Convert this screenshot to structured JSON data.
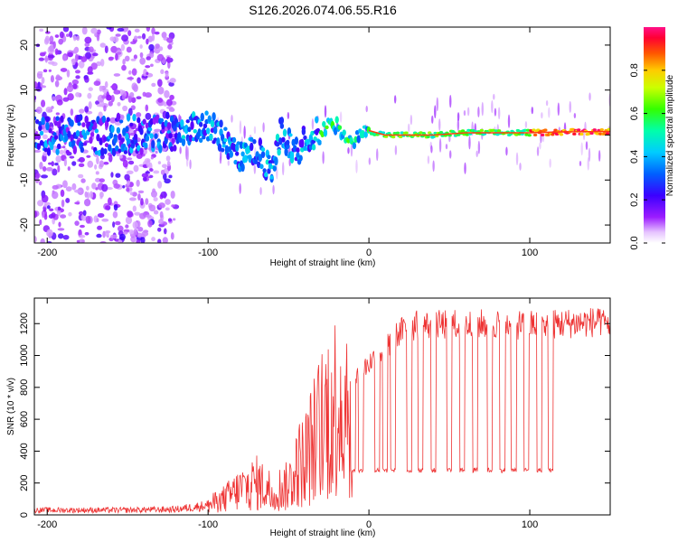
{
  "chart_data": [
    {
      "type": "heatmap",
      "title": "S126.2026.074.06.55.R16",
      "xlabel": "Height of straight line (km)",
      "ylabel": "Frequency (Hz)",
      "xlim": [
        -208,
        150
      ],
      "ylim": [
        -24,
        24
      ],
      "xticks": [
        -200,
        -100,
        0,
        100
      ],
      "xtick_labels": [
        "-200",
        "-100",
        "0",
        "100"
      ],
      "yticks": [
        20,
        10,
        0,
        -10,
        -20
      ],
      "ytick_labels": [
        "20",
        "10",
        "0",
        "-10",
        "-20"
      ],
      "colorbar": {
        "label": "Normalized spectral amplitude",
        "range": [
          0,
          1
        ],
        "ticks": [
          0.0,
          0.2,
          0.4,
          0.6,
          0.8
        ],
        "tick_labels": [
          "0.0",
          "0.2",
          "0.4",
          "0.6",
          "0.8"
        ]
      },
      "ridge": {
        "x": [
          -208,
          -180,
          -150,
          -130,
          -120,
          -110,
          -100,
          -95,
          -90,
          -85,
          -80,
          -75,
          -70,
          -65,
          -60,
          -55,
          -50,
          -45,
          -40,
          -35,
          -30,
          -25,
          -20,
          -15,
          -10,
          -5,
          0,
          5,
          10,
          20,
          40,
          60,
          80,
          100,
          120,
          150
        ],
        "y": [
          0,
          0,
          0,
          0.5,
          1,
          1.5,
          2,
          1,
          -1,
          -3,
          -5,
          -4,
          -3,
          -6,
          -9,
          1,
          -2,
          -4,
          -1,
          0,
          1,
          2.5,
          2,
          -1,
          -2,
          0,
          1,
          0.5,
          0,
          0,
          0,
          0.5,
          0.5,
          0.5,
          0.7,
          0.8
        ]
      }
    },
    {
      "type": "line",
      "xlabel": "Height of straight line (km)",
      "ylabel": "SNR (10 * v/v)",
      "xlim": [
        -208,
        150
      ],
      "ylim": [
        0,
        1360
      ],
      "xticks": [
        -200,
        -100,
        0,
        100
      ],
      "xtick_labels": [
        "-200",
        "-100",
        "0",
        "100"
      ],
      "yticks": [
        0,
        200,
        400,
        600,
        800,
        1000,
        1200
      ],
      "ytick_labels": [
        "0",
        "200",
        "400",
        "600",
        "800",
        "1000",
        "1200"
      ],
      "series": [
        {
          "name": "SNR",
          "color": "#ee3333",
          "envelope_x": [
            -208,
            -150,
            -120,
            -100,
            -90,
            -80,
            -70,
            -60,
            -50,
            -45,
            -40,
            -35,
            -30,
            -25,
            -20,
            -15,
            -10,
            -5,
            0,
            5,
            10,
            15,
            20,
            25,
            30,
            40,
            60,
            80,
            100,
            120,
            140,
            150
          ],
          "envelope_y": [
            30,
            30,
            35,
            60,
            100,
            160,
            200,
            150,
            180,
            300,
            350,
            450,
            550,
            650,
            700,
            750,
            800,
            900,
            950,
            1000,
            1050,
            1100,
            1150,
            1180,
            1190,
            1190,
            1195,
            1200,
            1190,
            1200,
            1210,
            1200
          ],
          "dropout_x": [
            -10,
            -5,
            5,
            10,
            15,
            25,
            32,
            40,
            50,
            58,
            66,
            75,
            83,
            90,
            98,
            106,
            113
          ],
          "dropout_level": 280
        }
      ]
    }
  ]
}
